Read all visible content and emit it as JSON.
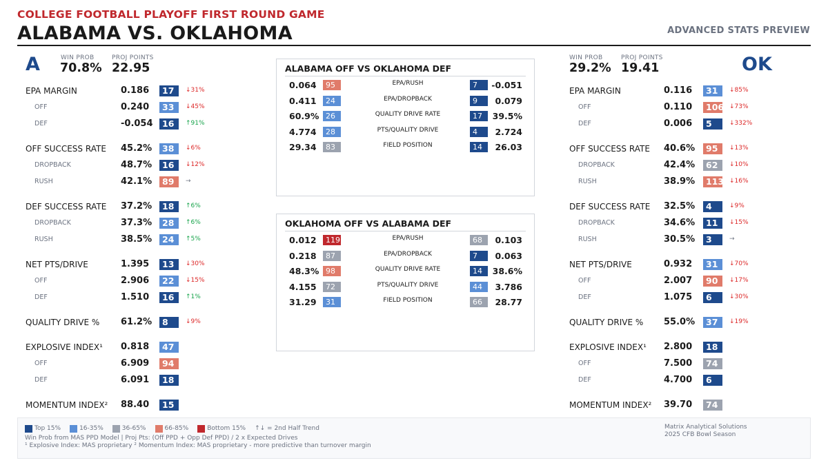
{
  "header": {
    "subtitle": "COLLEGE FOOTBALL PLAYOFF FIRST ROUND GAME",
    "title": "ALABAMA VS. OKLAHOMA",
    "right_label": "ADVANCED STATS PREVIEW"
  },
  "colors": {
    "top15": "#1e4a8c",
    "r16_35": "#5b8fd6",
    "r36_65": "#9ca3af",
    "r66_85": "#e07b6a",
    "bottom15": "#c0282d"
  },
  "left": {
    "abbr": "A",
    "win_prob_label": "WIN PROB",
    "win_prob": "70.8%",
    "proj_points_label": "PROJ POINTS",
    "proj_points": "22.95",
    "rows": [
      {
        "label": "EPA MARGIN",
        "sub": false,
        "value": "0.186",
        "rank": "17",
        "tier": "top15",
        "trend": "↓31%",
        "dir": "down"
      },
      {
        "label": "OFF",
        "sub": true,
        "value": "0.240",
        "rank": "33",
        "tier": "r16_35",
        "trend": "↓45%",
        "dir": "down"
      },
      {
        "label": "DEF",
        "sub": true,
        "value": "-0.054",
        "rank": "16",
        "tier": "top15",
        "trend": "↑91%",
        "dir": "up"
      },
      {
        "label": "OFF SUCCESS RATE",
        "sub": false,
        "value": "45.2%",
        "rank": "38",
        "tier": "r16_35",
        "trend": "↓6%",
        "dir": "down"
      },
      {
        "label": "DROPBACK",
        "sub": true,
        "value": "48.7%",
        "rank": "16",
        "tier": "top15",
        "trend": "↓12%",
        "dir": "down"
      },
      {
        "label": "RUSH",
        "sub": true,
        "value": "42.1%",
        "rank": "89",
        "tier": "r66_85",
        "trend": "→",
        "dir": "flat"
      },
      {
        "label": "DEF SUCCESS RATE",
        "sub": false,
        "value": "37.2%",
        "rank": "18",
        "tier": "top15",
        "trend": "↑6%",
        "dir": "up"
      },
      {
        "label": "DROPBACK",
        "sub": true,
        "value": "37.3%",
        "rank": "28",
        "tier": "r16_35",
        "trend": "↑6%",
        "dir": "up"
      },
      {
        "label": "RUSH",
        "sub": true,
        "value": "38.5%",
        "rank": "24",
        "tier": "r16_35",
        "trend": "↑5%",
        "dir": "up"
      },
      {
        "label": "NET PTS/DRIVE",
        "sub": false,
        "value": "1.395",
        "rank": "13",
        "tier": "top15",
        "trend": "↓30%",
        "dir": "down"
      },
      {
        "label": "OFF",
        "sub": true,
        "value": "2.906",
        "rank": "22",
        "tier": "r16_35",
        "trend": "↓15%",
        "dir": "down"
      },
      {
        "label": "DEF",
        "sub": true,
        "value": "1.510",
        "rank": "16",
        "tier": "top15",
        "trend": "↑1%",
        "dir": "up"
      },
      {
        "label": "QUALITY DRIVE %",
        "sub": false,
        "value": "61.2%",
        "rank": "8",
        "tier": "top15",
        "trend": "↓9%",
        "dir": "down"
      },
      {
        "label": "EXPLOSIVE INDEX¹",
        "sub": false,
        "value": "0.818",
        "rank": "47",
        "tier": "r16_35",
        "trend": "",
        "dir": "flat"
      },
      {
        "label": "OFF",
        "sub": true,
        "value": "6.909",
        "rank": "94",
        "tier": "r66_85",
        "trend": "",
        "dir": "flat"
      },
      {
        "label": "DEF",
        "sub": true,
        "value": "6.091",
        "rank": "18",
        "tier": "top15",
        "trend": "",
        "dir": "flat"
      },
      {
        "label": "MOMENTUM INDEX²",
        "sub": false,
        "value": "88.40",
        "rank": "15",
        "tier": "top15",
        "trend": "",
        "dir": "flat"
      }
    ]
  },
  "right": {
    "abbr": "OK",
    "win_prob_label": "WIN PROB",
    "win_prob": "29.2%",
    "proj_points_label": "PROJ POINTS",
    "proj_points": "19.41",
    "rows": [
      {
        "label": "EPA MARGIN",
        "sub": false,
        "value": "0.116",
        "rank": "31",
        "tier": "r16_35",
        "trend": "↓85%",
        "dir": "down"
      },
      {
        "label": "OFF",
        "sub": true,
        "value": "0.110",
        "rank": "106",
        "tier": "r66_85",
        "trend": "↓73%",
        "dir": "down"
      },
      {
        "label": "DEF",
        "sub": true,
        "value": "0.006",
        "rank": "5",
        "tier": "top15",
        "trend": "↓332%",
        "dir": "down"
      },
      {
        "label": "OFF SUCCESS RATE",
        "sub": false,
        "value": "40.6%",
        "rank": "95",
        "tier": "r66_85",
        "trend": "↓13%",
        "dir": "down"
      },
      {
        "label": "DROPBACK",
        "sub": true,
        "value": "42.4%",
        "rank": "62",
        "tier": "r36_65",
        "trend": "↓10%",
        "dir": "down"
      },
      {
        "label": "RUSH",
        "sub": true,
        "value": "38.9%",
        "rank": "113",
        "tier": "r66_85",
        "trend": "↓16%",
        "dir": "down"
      },
      {
        "label": "DEF SUCCESS RATE",
        "sub": false,
        "value": "32.5%",
        "rank": "4",
        "tier": "top15",
        "trend": "↓9%",
        "dir": "down"
      },
      {
        "label": "DROPBACK",
        "sub": true,
        "value": "34.6%",
        "rank": "11",
        "tier": "top15",
        "trend": "↓15%",
        "dir": "down"
      },
      {
        "label": "RUSH",
        "sub": true,
        "value": "30.5%",
        "rank": "3",
        "tier": "top15",
        "trend": "→",
        "dir": "flat"
      },
      {
        "label": "NET PTS/DRIVE",
        "sub": false,
        "value": "0.932",
        "rank": "31",
        "tier": "r16_35",
        "trend": "↓70%",
        "dir": "down"
      },
      {
        "label": "OFF",
        "sub": true,
        "value": "2.007",
        "rank": "90",
        "tier": "r66_85",
        "trend": "↓17%",
        "dir": "down"
      },
      {
        "label": "DEF",
        "sub": true,
        "value": "1.075",
        "rank": "6",
        "tier": "top15",
        "trend": "↓30%",
        "dir": "down"
      },
      {
        "label": "QUALITY DRIVE %",
        "sub": false,
        "value": "55.0%",
        "rank": "37",
        "tier": "r16_35",
        "trend": "↓19%",
        "dir": "down"
      },
      {
        "label": "EXPLOSIVE INDEX¹",
        "sub": false,
        "value": "2.800",
        "rank": "18",
        "tier": "top15",
        "trend": "",
        "dir": "flat"
      },
      {
        "label": "OFF",
        "sub": true,
        "value": "7.500",
        "rank": "74",
        "tier": "r36_65",
        "trend": "",
        "dir": "flat"
      },
      {
        "label": "DEF",
        "sub": true,
        "value": "4.700",
        "rank": "6",
        "tier": "top15",
        "trend": "",
        "dir": "flat"
      },
      {
        "label": "MOMENTUM INDEX²",
        "sub": false,
        "value": "39.70",
        "rank": "74",
        "tier": "r36_65",
        "trend": "",
        "dir": "flat"
      }
    ]
  },
  "matchups": [
    {
      "title": "ALABAMA OFF VS OKLAHOMA DEF",
      "rows": [
        {
          "label": "EPA/RUSH",
          "left_value": "0.064",
          "left_rank": "95",
          "left_tier": "r66_85",
          "right_rank": "7",
          "right_tier": "top15",
          "right_value": "-0.051"
        },
        {
          "label": "EPA/DROPBACK",
          "left_value": "0.411",
          "left_rank": "24",
          "left_tier": "r16_35",
          "right_rank": "9",
          "right_tier": "top15",
          "right_value": "0.079"
        },
        {
          "label": "QUALITY DRIVE RATE",
          "left_value": "60.9%",
          "left_rank": "26",
          "left_tier": "r16_35",
          "right_rank": "17",
          "right_tier": "top15",
          "right_value": "39.5%"
        },
        {
          "label": "PTS/QUALITY DRIVE",
          "left_value": "4.774",
          "left_rank": "28",
          "left_tier": "r16_35",
          "right_rank": "4",
          "right_tier": "top15",
          "right_value": "2.724"
        },
        {
          "label": "FIELD POSITION",
          "left_value": "29.34",
          "left_rank": "83",
          "left_tier": "r36_65",
          "right_rank": "14",
          "right_tier": "top15",
          "right_value": "26.03"
        }
      ]
    },
    {
      "title": "OKLAHOMA OFF VS ALABAMA DEF",
      "rows": [
        {
          "label": "EPA/RUSH",
          "left_value": "0.012",
          "left_rank": "119",
          "left_tier": "bottom15",
          "right_rank": "68",
          "right_tier": "r36_65",
          "right_value": "0.103"
        },
        {
          "label": "EPA/DROPBACK",
          "left_value": "0.218",
          "left_rank": "87",
          "left_tier": "r36_65",
          "right_rank": "7",
          "right_tier": "top15",
          "right_value": "0.063"
        },
        {
          "label": "QUALITY DRIVE RATE",
          "left_value": "48.3%",
          "left_rank": "98",
          "left_tier": "r66_85",
          "right_rank": "14",
          "right_tier": "top15",
          "right_value": "38.6%"
        },
        {
          "label": "PTS/QUALITY DRIVE",
          "left_value": "4.155",
          "left_rank": "72",
          "left_tier": "r36_65",
          "right_rank": "44",
          "right_tier": "r16_35",
          "right_value": "3.786"
        },
        {
          "label": "FIELD POSITION",
          "left_value": "31.29",
          "left_rank": "31",
          "left_tier": "r16_35",
          "right_rank": "66",
          "right_tier": "r36_65",
          "right_value": "28.77"
        }
      ]
    }
  ],
  "footer": {
    "legend": [
      {
        "label": "Top 15%",
        "tier": "top15"
      },
      {
        "label": "16-35%",
        "tier": "r16_35"
      },
      {
        "label": "36-65%",
        "tier": "r36_65"
      },
      {
        "label": "66-85%",
        "tier": "r66_85"
      },
      {
        "label": "Bottom 15%",
        "tier": "bottom15"
      },
      {
        "label": "↑↓ = 2nd Half Trend",
        "tier": ""
      }
    ],
    "note1": "Win Prob from MAS PPD Model | Proj Pts: (Off PPD + Opp Def PPD) / 2 x Expected Drives",
    "note2": "¹ Explosive Index: MAS proprietary  ² Momentum Index: MAS proprietary - more predictive than turnover margin",
    "credit1": "Matrix Analytical Solutions",
    "credit2": "2025 CFB Bowl Season"
  }
}
